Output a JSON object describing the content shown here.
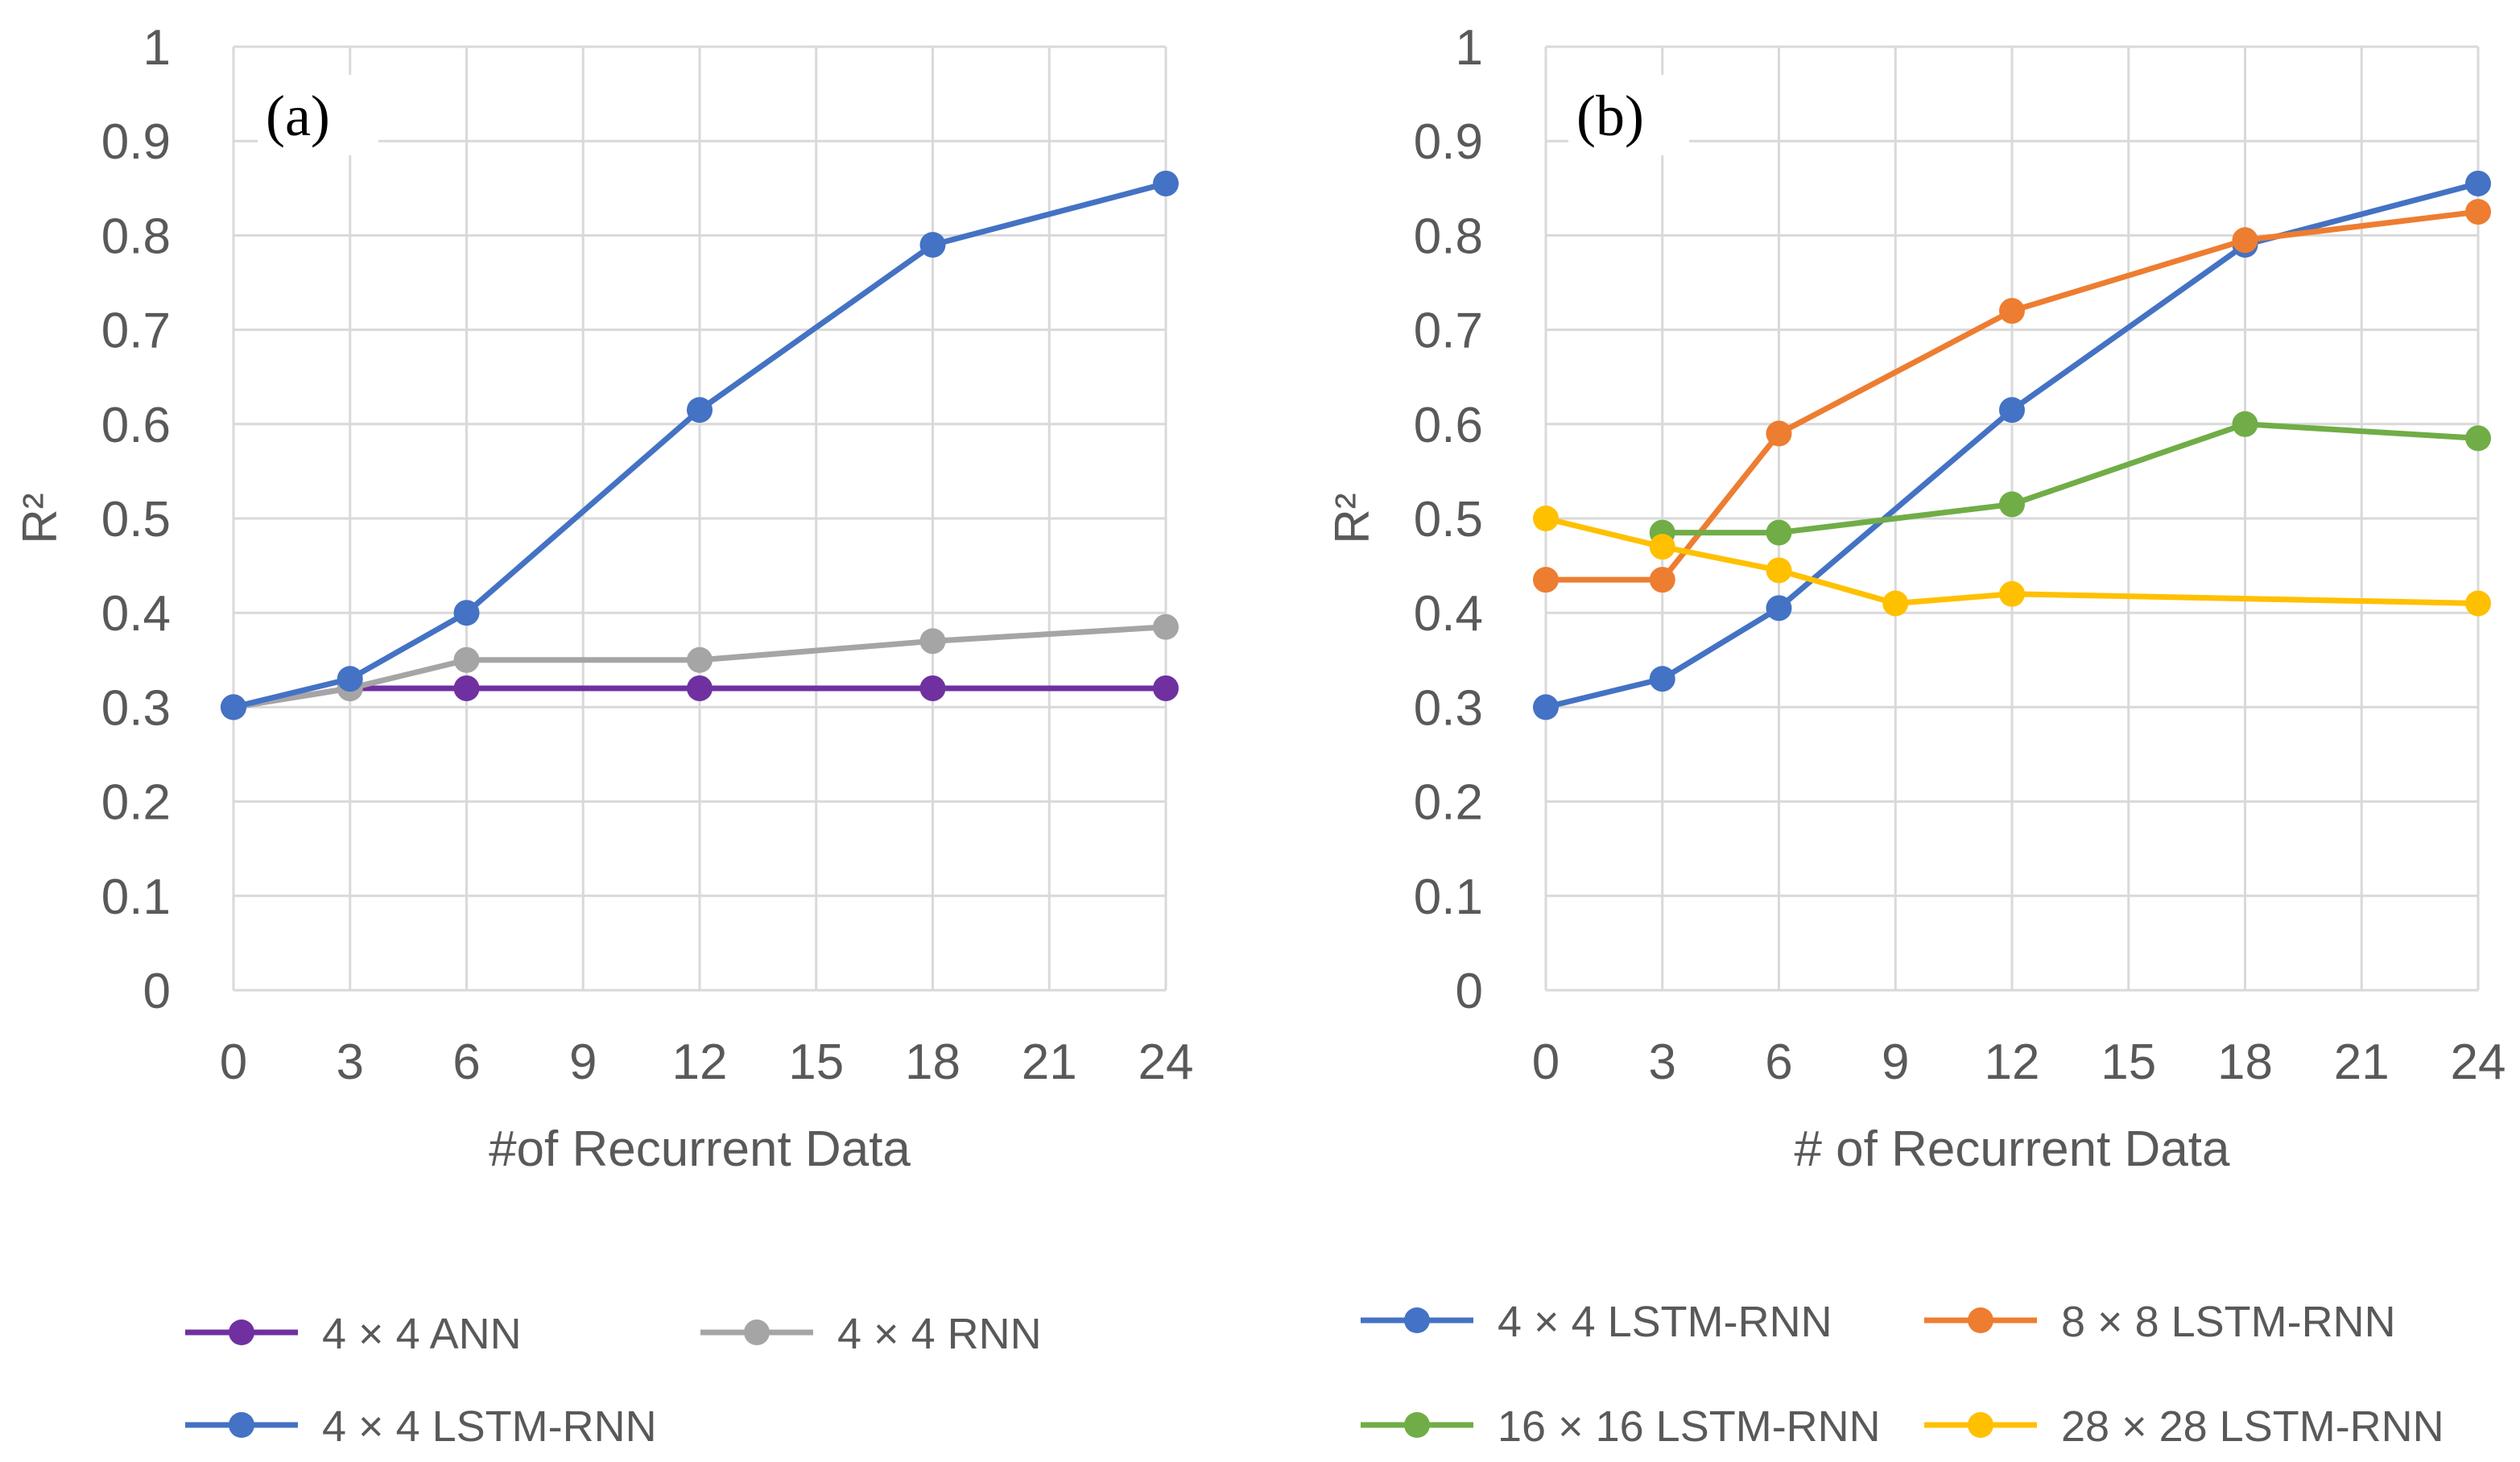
{
  "chart_data": [
    {
      "type": "line",
      "panel_label": "(a)",
      "xlabel": "#of Recurrent Data",
      "ylabel": "R²",
      "xlim": [
        0,
        24
      ],
      "ylim": [
        0,
        1
      ],
      "x_ticks": [
        "0",
        "3",
        "6",
        "9",
        "12",
        "15",
        "18",
        "21",
        "24"
      ],
      "y_ticks": [
        "0",
        "0.1",
        "0.2",
        "0.3",
        "0.4",
        "0.5",
        "0.6",
        "0.7",
        "0.8",
        "0.9",
        "1"
      ],
      "grid": true,
      "legend_position": "bottom",
      "series": [
        {
          "name": "4 × 4 ANN",
          "color": "#7030A0",
          "x": [
            0,
            3,
            6,
            12,
            18,
            24
          ],
          "y": [
            0.3,
            0.32,
            0.32,
            0.32,
            0.32,
            0.32
          ]
        },
        {
          "name": "4 × 4 RNN",
          "color": "#A5A5A5",
          "x": [
            0,
            3,
            6,
            12,
            18,
            24
          ],
          "y": [
            0.3,
            0.32,
            0.35,
            0.35,
            0.37,
            0.385
          ]
        },
        {
          "name": "4 × 4 LSTM-RNN",
          "color": "#4472C4",
          "x": [
            0,
            3,
            6,
            12,
            18,
            24
          ],
          "y": [
            0.3,
            0.33,
            0.4,
            0.615,
            0.79,
            0.855
          ]
        }
      ]
    },
    {
      "type": "line",
      "panel_label": "(b)",
      "xlabel": "# of Recurrent Data",
      "ylabel": "R²",
      "xlim": [
        0,
        24
      ],
      "ylim": [
        0,
        1
      ],
      "x_ticks": [
        "0",
        "3",
        "6",
        "9",
        "12",
        "15",
        "18",
        "21",
        "24"
      ],
      "y_ticks": [
        "0",
        "0.1",
        "0.2",
        "0.3",
        "0.4",
        "0.5",
        "0.6",
        "0.7",
        "0.8",
        "0.9",
        "1"
      ],
      "grid": true,
      "legend_position": "bottom",
      "series": [
        {
          "name": "4 × 4 LSTM-RNN",
          "color": "#4472C4",
          "x": [
            0,
            3,
            6,
            12,
            18,
            24
          ],
          "y": [
            0.3,
            0.33,
            0.405,
            0.615,
            0.79,
            0.855
          ]
        },
        {
          "name": "8 × 8 LSTM-RNN",
          "color": "#ED7D31",
          "x": [
            0,
            3,
            6,
            12,
            18,
            24
          ],
          "y": [
            0.435,
            0.435,
            0.59,
            0.72,
            0.795,
            0.825
          ]
        },
        {
          "name": "16 × 16 LSTM-RNN",
          "color": "#70AD47",
          "x": [
            3,
            6,
            12,
            18,
            24
          ],
          "y": [
            0.485,
            0.485,
            0.515,
            0.6,
            0.585
          ]
        },
        {
          "name": "28 × 28 LSTM-RNN",
          "color": "#FFC000",
          "x": [
            0,
            3,
            6,
            9,
            12,
            24
          ],
          "y": [
            0.5,
            0.47,
            0.445,
            0.41,
            0.42,
            0.41
          ]
        }
      ]
    }
  ]
}
